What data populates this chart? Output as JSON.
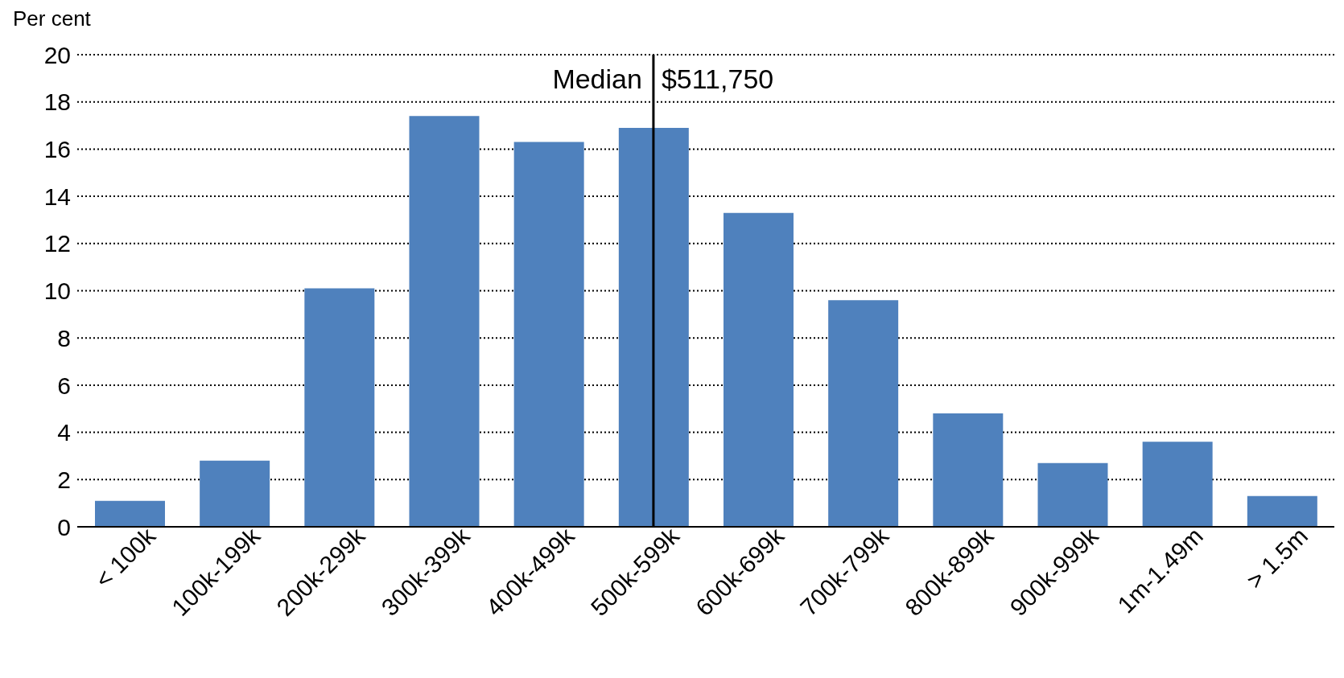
{
  "chart_data": {
    "type": "bar",
    "ylabel": "Per cent",
    "categories": [
      "< 100k",
      "100k-199k",
      "200k-299k",
      "300k-399k",
      "400k-499k",
      "500k-599k",
      "600k-699k",
      "700k-799k",
      "800k-899k",
      "900k-999k",
      "1m-1.49m",
      "> 1.5m"
    ],
    "values": [
      1.1,
      2.8,
      10.1,
      17.4,
      16.3,
      16.9,
      13.3,
      9.6,
      4.8,
      2.7,
      3.6,
      1.3
    ],
    "color": "#4f81bd",
    "ylim": [
      0,
      20
    ],
    "yticks": [
      0,
      2,
      4,
      6,
      8,
      10,
      12,
      14,
      16,
      18,
      20
    ],
    "grid": "y",
    "legend": false,
    "ref_lines": [
      {
        "axis": "x",
        "value": "500k-599k",
        "label": "Median",
        "color": "#000000"
      }
    ],
    "annotations": [
      "$511,750"
    ]
  }
}
